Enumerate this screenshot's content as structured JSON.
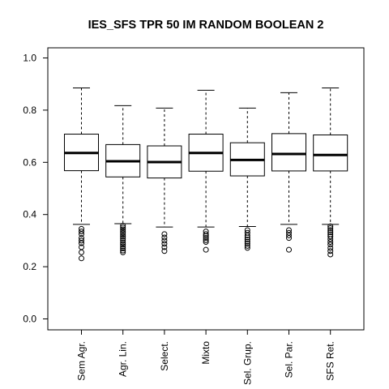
{
  "chart_data": {
    "type": "boxplot",
    "title": "IES_SFS TPR 50 IM RANDOM BOOLEAN 2",
    "xlabel": "",
    "ylabel": "",
    "ylim": [
      0.0,
      1.0
    ],
    "yticks": [
      0.0,
      0.2,
      0.4,
      0.6,
      0.8,
      1.0
    ],
    "ytick_labels": [
      "0.0",
      "0.2",
      "0.4",
      "0.6",
      "0.8",
      "1.0"
    ],
    "categories": [
      "Sem Agr.",
      "Agr. Lin.",
      "Select.",
      "Mixto",
      "Sel. Grup.",
      "Sel. Par.",
      "SFS Ret."
    ],
    "boxes": [
      {
        "name": "Sem Agr.",
        "whisker_low": 0.362,
        "q1": 0.568,
        "median": 0.636,
        "q3": 0.708,
        "whisker_high": 0.885,
        "outliers": [
          0.345,
          0.335,
          0.325,
          0.31,
          0.3,
          0.29,
          0.275,
          0.255,
          0.232
        ]
      },
      {
        "name": "Agr. Lin.",
        "whisker_low": 0.365,
        "q1": 0.544,
        "median": 0.604,
        "q3": 0.668,
        "whisker_high": 0.817,
        "outliers": [
          0.357,
          0.35,
          0.343,
          0.336,
          0.329,
          0.322,
          0.315,
          0.308,
          0.3,
          0.292,
          0.285,
          0.278,
          0.27,
          0.262,
          0.255
        ]
      },
      {
        "name": "Select.",
        "whisker_low": 0.352,
        "q1": 0.54,
        "median": 0.601,
        "q3": 0.663,
        "whisker_high": 0.808,
        "outliers": [
          0.325,
          0.312,
          0.3,
          0.288,
          0.275,
          0.26
        ]
      },
      {
        "name": "Mixto",
        "whisker_low": 0.352,
        "q1": 0.566,
        "median": 0.636,
        "q3": 0.708,
        "whisker_high": 0.876,
        "outliers": [
          0.335,
          0.325,
          0.318,
          0.31,
          0.302,
          0.295,
          0.265
        ]
      },
      {
        "name": "Sel. Grup.",
        "whisker_low": 0.354,
        "q1": 0.548,
        "median": 0.609,
        "q3": 0.675,
        "whisker_high": 0.808,
        "outliers": [
          0.34,
          0.33,
          0.32,
          0.312,
          0.304,
          0.296,
          0.288,
          0.28,
          0.272
        ]
      },
      {
        "name": "Sel. Par.",
        "whisker_low": 0.362,
        "q1": 0.567,
        "median": 0.632,
        "q3": 0.71,
        "whisker_high": 0.867,
        "outliers": [
          0.34,
          0.33,
          0.32,
          0.31,
          0.265
        ]
      },
      {
        "name": "SFS Ret.",
        "whisker_low": 0.362,
        "q1": 0.567,
        "median": 0.628,
        "q3": 0.705,
        "whisker_high": 0.885,
        "outliers": [
          0.355,
          0.348,
          0.34,
          0.332,
          0.324,
          0.316,
          0.306,
          0.295,
          0.285,
          0.272,
          0.26,
          0.247
        ]
      }
    ],
    "grid": false,
    "legend": "none"
  }
}
